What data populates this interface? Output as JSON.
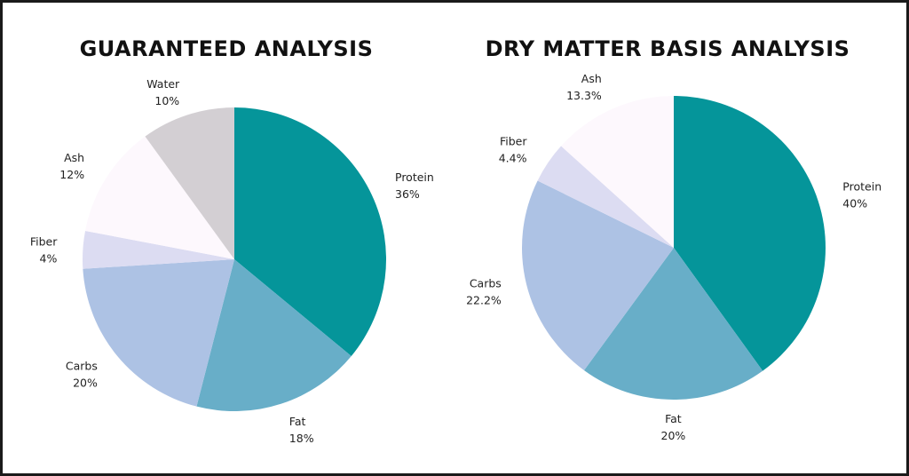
{
  "chart_data": [
    {
      "type": "pie",
      "title": "GUARANTEED ANALYSIS",
      "slices": [
        {
          "label": "Protein",
          "value": 36,
          "value_label": "36%",
          "color": "#05959a"
        },
        {
          "label": "Fat",
          "value": 18,
          "value_label": "18%",
          "color": "#68aec8"
        },
        {
          "label": "Carbs",
          "value": 20,
          "value_label": "20%",
          "color": "#adc2e4"
        },
        {
          "label": "Fiber",
          "value": 4,
          "value_label": "4%",
          "color": "#dcdcf2"
        },
        {
          "label": "Ash",
          "value": 12,
          "value_label": "12%",
          "color": "#fdf8fd"
        },
        {
          "label": "Water",
          "value": 10,
          "value_label": "10%",
          "color": "#d3cfd3"
        }
      ]
    },
    {
      "type": "pie",
      "title": "DRY MATTER BASIS ANALYSIS",
      "slices": [
        {
          "label": "Protein",
          "value": 40,
          "value_label": "40%",
          "color": "#05959a"
        },
        {
          "label": "Fat",
          "value": 20,
          "value_label": "20%",
          "color": "#68aec8"
        },
        {
          "label": "Carbs",
          "value": 22.2,
          "value_label": "22.2%",
          "color": "#adc2e4"
        },
        {
          "label": "Fiber",
          "value": 4.4,
          "value_label": "4.4%",
          "color": "#dcdcf2"
        },
        {
          "label": "Ash",
          "value": 13.3,
          "value_label": "13.3%",
          "color": "#fdf8fd"
        }
      ]
    }
  ]
}
